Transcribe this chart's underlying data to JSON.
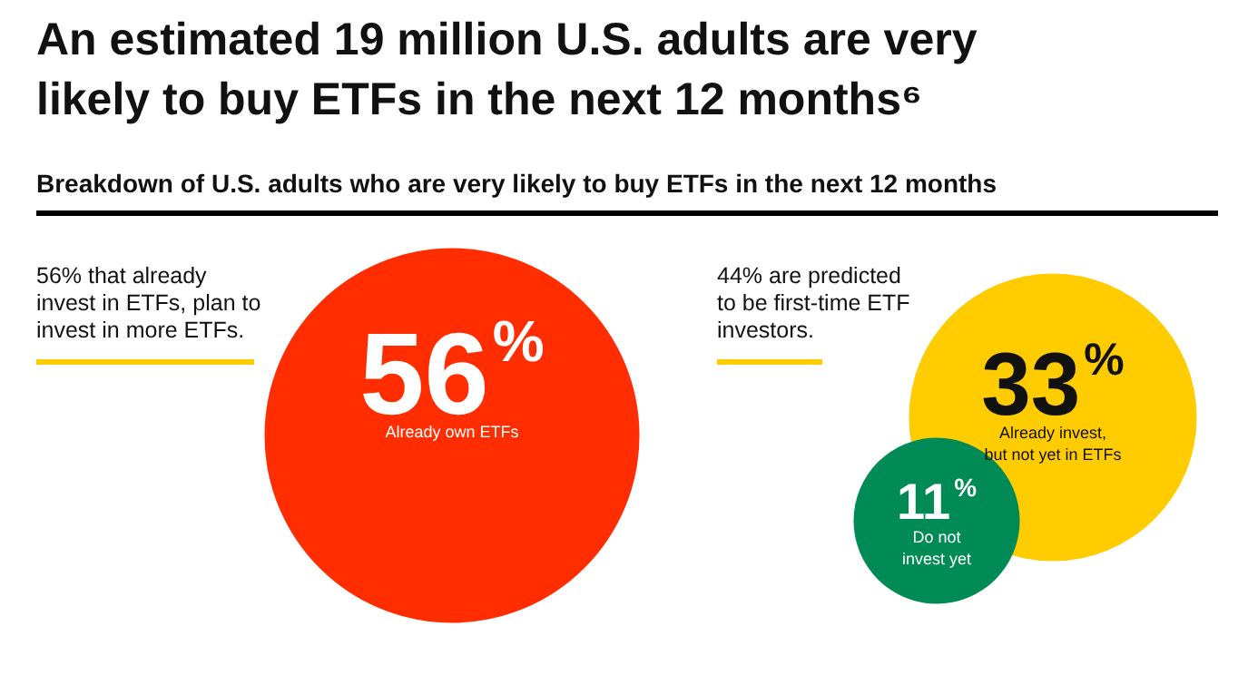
{
  "chart_data": {
    "type": "other",
    "title": "An estimated 19 million U.S. adults are very likely to buy ETFs in the next 12 months⁶",
    "subtitle": "Breakdown of U.S. adults who are very likely to buy ETFs in the next 12 months",
    "categories": [
      "Already own ETFs",
      "Already invest,\nbut not yet in ETFs",
      "Do not\ninvest yet"
    ],
    "values": [
      56,
      33,
      11
    ],
    "value_labels": [
      "56%",
      "33%",
      "11%"
    ],
    "colors": [
      "#ff2d00",
      "#ffcc00",
      "#008a55"
    ],
    "annotations": [
      "56% that already invest in ETFs, plan to invest in more ETFs.",
      "44% are predicted to be first-time ETF investors."
    ]
  }
}
